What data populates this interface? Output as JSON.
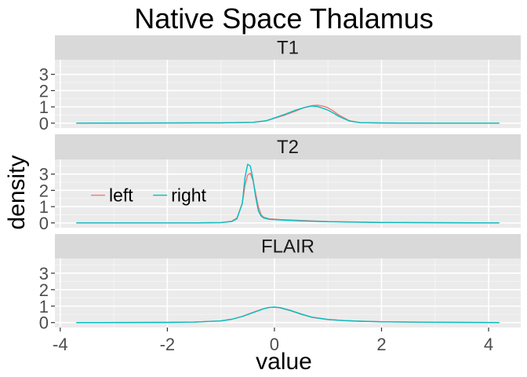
{
  "chart_data": {
    "type": "line",
    "title": "Native Space Thalamus",
    "xlabel": "value",
    "ylabel": "density",
    "xlim": [
      -4.1,
      4.6
    ],
    "ylim": [
      -0.3,
      3.9
    ],
    "x_ticks": [
      -4,
      -2,
      0,
      2,
      4
    ],
    "y_ticks": [
      0,
      1,
      2,
      3
    ],
    "grid": true,
    "legend": {
      "placement": "inside-left (T2 panel)",
      "entries": [
        "left",
        "right"
      ]
    },
    "colors": {
      "left": "#F8766D",
      "right": "#00BFC4",
      "strip_bg": "#D9D9D9",
      "panel_bg": "#EBEBEB",
      "grid": "#FFFFFF"
    },
    "panels": [
      {
        "label": "T1",
        "series": [
          {
            "name": "left",
            "x": [
              -3.7,
              -2.0,
              -1.0,
              -0.4,
              -0.15,
              0.0,
              0.2,
              0.4,
              0.55,
              0.7,
              0.8,
              0.9,
              1.0,
              1.1,
              1.2,
              1.4,
              1.6,
              2.0,
              3.0,
              4.2
            ],
            "y": [
              0,
              0.01,
              0.02,
              0.05,
              0.15,
              0.3,
              0.5,
              0.75,
              0.95,
              1.08,
              1.1,
              1.05,
              0.95,
              0.75,
              0.5,
              0.15,
              0.03,
              0.01,
              0.0,
              0
            ]
          },
          {
            "name": "right",
            "x": [
              -3.7,
              -2.0,
              -1.0,
              -0.4,
              -0.15,
              0.0,
              0.2,
              0.4,
              0.55,
              0.7,
              0.8,
              0.9,
              1.0,
              1.1,
              1.2,
              1.4,
              1.6,
              2.0,
              3.0,
              4.2
            ],
            "y": [
              0,
              0.01,
              0.02,
              0.05,
              0.15,
              0.32,
              0.55,
              0.8,
              0.95,
              1.05,
              1.02,
              0.92,
              0.8,
              0.62,
              0.42,
              0.13,
              0.03,
              0.01,
              0.0,
              0
            ]
          }
        ]
      },
      {
        "label": "T2",
        "series": [
          {
            "name": "left",
            "x": [
              -3.7,
              -1.5,
              -1.0,
              -0.8,
              -0.7,
              -0.6,
              -0.55,
              -0.5,
              -0.45,
              -0.4,
              -0.35,
              -0.3,
              -0.25,
              -0.2,
              -0.1,
              0.1,
              0.5,
              1.0,
              2.0,
              4.2
            ],
            "y": [
              0,
              0.0,
              0.02,
              0.1,
              0.3,
              1.2,
              2.3,
              2.95,
              3.05,
              2.6,
              1.8,
              1.0,
              0.5,
              0.35,
              0.25,
              0.2,
              0.15,
              0.08,
              0.03,
              0
            ]
          },
          {
            "name": "right",
            "x": [
              -3.7,
              -1.5,
              -1.0,
              -0.8,
              -0.7,
              -0.6,
              -0.55,
              -0.5,
              -0.45,
              -0.4,
              -0.35,
              -0.3,
              -0.25,
              -0.2,
              -0.1,
              0.1,
              0.5,
              1.0,
              2.0,
              4.2
            ],
            "y": [
              0,
              0.0,
              0.02,
              0.08,
              0.25,
              1.2,
              2.8,
              3.6,
              3.5,
              2.7,
              1.6,
              0.75,
              0.42,
              0.3,
              0.22,
              0.18,
              0.12,
              0.07,
              0.02,
              0
            ]
          }
        ]
      },
      {
        "label": "FLAIR",
        "series": [
          {
            "name": "left",
            "x": [
              -3.7,
              -2.0,
              -1.5,
              -1.0,
              -0.8,
              -0.6,
              -0.4,
              -0.2,
              -0.1,
              0.0,
              0.1,
              0.3,
              0.5,
              0.7,
              1.0,
              1.3,
              1.6,
              2.0,
              3.0,
              4.2
            ],
            "y": [
              0,
              0.01,
              0.03,
              0.1,
              0.2,
              0.38,
              0.62,
              0.85,
              0.92,
              0.93,
              0.9,
              0.72,
              0.5,
              0.32,
              0.18,
              0.12,
              0.08,
              0.05,
              0.02,
              0
            ]
          },
          {
            "name": "right",
            "x": [
              -3.7,
              -2.0,
              -1.5,
              -1.0,
              -0.8,
              -0.6,
              -0.4,
              -0.2,
              -0.1,
              0.0,
              0.1,
              0.3,
              0.5,
              0.7,
              1.0,
              1.3,
              1.6,
              2.0,
              3.0,
              4.2
            ],
            "y": [
              0,
              0.01,
              0.03,
              0.1,
              0.2,
              0.37,
              0.6,
              0.84,
              0.92,
              0.94,
              0.91,
              0.74,
              0.52,
              0.33,
              0.19,
              0.12,
              0.08,
              0.05,
              0.02,
              0
            ]
          }
        ]
      }
    ]
  }
}
